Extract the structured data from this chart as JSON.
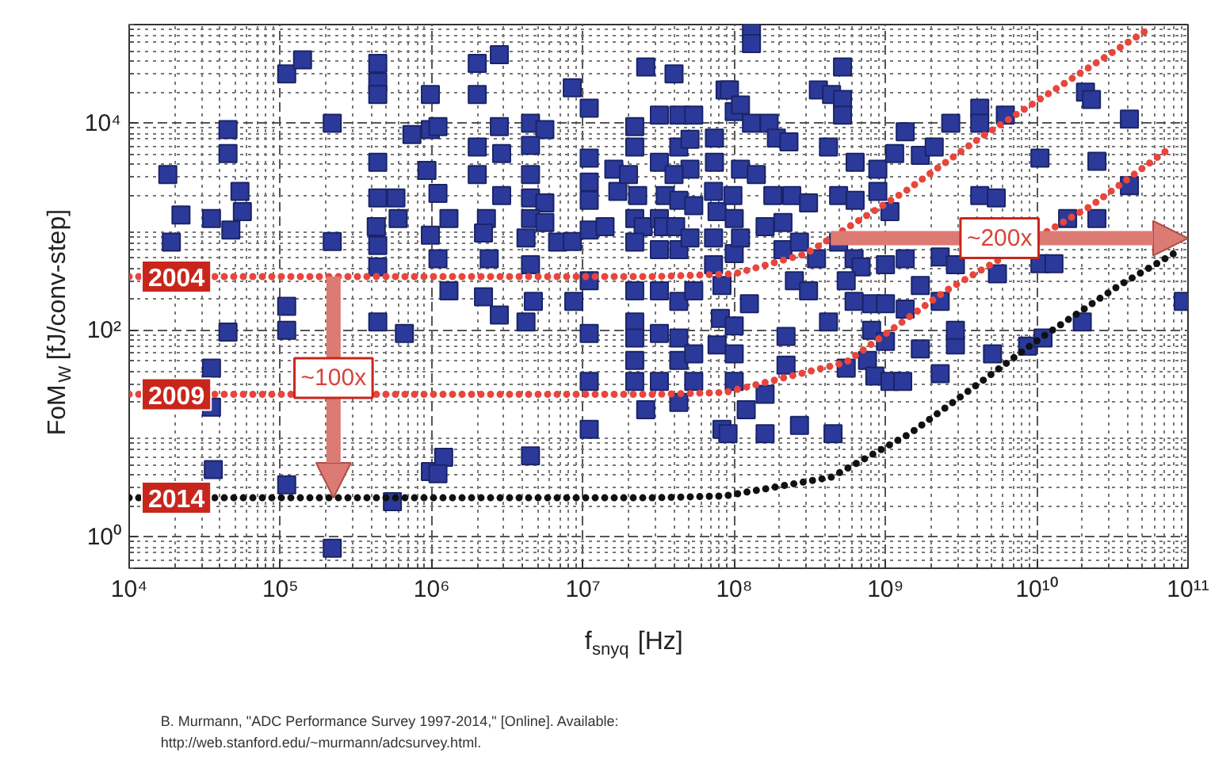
{
  "chart_data": {
    "type": "scatter",
    "xlabel": "f$_{snyq}$ [Hz]",
    "ylabel": "FoM$_{W}$ [fJ/conv-step]",
    "log": "xy",
    "xlim": [
      10000,
      100000000000
    ],
    "ylim": [
      0.5,
      90000
    ],
    "xticks": [
      {
        "value": 10000,
        "label": "10⁴"
      },
      {
        "value": 100000,
        "label": "10⁵"
      },
      {
        "value": 1000000,
        "label": "10⁶"
      },
      {
        "value": 10000000,
        "label": "10⁷"
      },
      {
        "value": 100000000,
        "label": "10⁸"
      },
      {
        "value": 1000000000,
        "label": "10⁹"
      },
      {
        "value": 10000000000,
        "label": "10¹⁰"
      },
      {
        "value": 100000000000,
        "label": "10¹¹"
      }
    ],
    "yticks": [
      {
        "value": 1,
        "label": "10⁰"
      },
      {
        "value": 100,
        "label": "10²"
      },
      {
        "value": 10000,
        "label": "10⁴"
      }
    ],
    "grid": true,
    "marker": "square",
    "series": [
      {
        "color": "#2b3a9a",
        "x": [
          18000.0,
          22000.0,
          19000.0,
          45000.0,
          45000.0,
          54000.0,
          56000.0,
          35000.0,
          47000.0,
          45000.0,
          35000.0,
          35000.0,
          36000.0,
          110000.0,
          140000.0,
          220000.0,
          220000.0,
          110000.0,
          110000.0,
          110000.0,
          220000.0,
          440000.0,
          440000.0,
          440000.0,
          440000.0,
          440000.0,
          580000.0,
          600000.0,
          430000.0,
          440000.0,
          440000.0,
          440000.0,
          660000.0,
          740000.0,
          550000.0,
          980000.0,
          980000.0,
          930000.0,
          980000.0,
          980000.0,
          1100000.0,
          1300000.0,
          1100000.0,
          1100000.0,
          1300000.0,
          2000000.0,
          2800000.0,
          2000000.0,
          2800000.0,
          2000000.0,
          2900000.0,
          2000000.0,
          2900000.0,
          2300000.0,
          2200000.0,
          2400000.0,
          2200000.0,
          2800000.0,
          1200000.0,
          1100000.0,
          4500000.0,
          5600000.0,
          4500000.0,
          4500000.0,
          4500000.0,
          5600000.0,
          4500000.0,
          5600000.0,
          4200000.0,
          4500000.0,
          4700000.0,
          4200000.0,
          4500000.0,
          8500000.0,
          11000000.0,
          11000000.0,
          11000000.0,
          11000000.0,
          6800000.0,
          8500000.0,
          11000000.0,
          14000000.0,
          8700000.0,
          11000000.0,
          11000000.0,
          11000000.0,
          11000000.0,
          16000000.0,
          17000000.0,
          22000000.0,
          22000000.0,
          20000000.0,
          23000000.0,
          22000000.0,
          25000000.0,
          22000000.0,
          26000000.0,
          32000000.0,
          32000000.0,
          32000000.0,
          40000000.0,
          43000000.0,
          54000000.0,
          43000000.0,
          51000000.0,
          51000000.0,
          40000000.0,
          35000000.0,
          43000000.0,
          54000000.0,
          34000000.0,
          41000000.0,
          32000000.0,
          43000000.0,
          51000000.0,
          22000000.0,
          22000000.0,
          22000000.0,
          32000000.0,
          43000000.0,
          54000000.0,
          32000000.0,
          43000000.0,
          43000000.0,
          54000000.0,
          22000000.0,
          22000000.0,
          26000000.0,
          32000000.0,
          43000000.0,
          54000000.0,
          74000000.0,
          74000000.0,
          73000000.0,
          77000000.0,
          73000000.0,
          73000000.0,
          87000000.0,
          83000000.0,
          81000000.0,
          77000000.0,
          83000000.0,
          100000000.0,
          98000000.0,
          100000000.0,
          130000000.0,
          130000000.0,
          520000000.0,
          360000000.0,
          440000000.0,
          520000000.0,
          520000000.0,
          93000000.0,
          110000000.0,
          130000000.0,
          170000000.0,
          190000000.0,
          230000000.0,
          420000000.0,
          630000000.0,
          890000000.0,
          1350000000.0,
          1150000000.0,
          1700000000.0,
          2100000000.0,
          2700000000.0,
          4200000000.0,
          4200000000.0,
          6200000000.0,
          10500000000.0,
          21000000000.0,
          23000000000.0,
          41000000000.0,
          25000000000.0,
          41000000000.0,
          4200000000.0,
          5400000000.0,
          110000000.0,
          140000000.0,
          180000000.0,
          240000000.0,
          310000000.0,
          490000000.0,
          630000000.0,
          890000000.0,
          1070000000.0,
          100000000.0,
          110000000.0,
          160000000.0,
          210000000.0,
          210000000.0,
          270000000.0,
          350000000.0,
          490000000.0,
          620000000.0,
          690000000.0,
          1000000000.0,
          1350000000.0,
          2300000000.0,
          2900000000.0,
          10500000000.0,
          13000000000.0,
          25000000000.0,
          16000000000.0,
          5500000000.0,
          250000000.0,
          310000000.0,
          550000000.0,
          620000000.0,
          810000000.0,
          1000000000.0,
          1350000000.0,
          1700000000.0,
          2300000000.0,
          126000000.0,
          100000000.0,
          220000000.0,
          420000000.0,
          810000000.0,
          1000000000.0,
          760000000.0,
          850000000.0,
          1070000000.0,
          1300000000.0,
          1700000000.0,
          2900000000.0,
          2900000000.0,
          2300000000.0,
          5100000000.0,
          8700000000.0,
          11000000000.0,
          20000000000.0,
          550000000.0,
          220000000.0,
          100000000.0,
          100000000.0,
          160000000.0,
          120000000.0,
          91000000.0,
          160000000.0,
          270000000.0,
          450000000.0,
          93000000000.0
        ],
        "values": [
          3200,
          1300,
          710,
          8700,
          5100,
          2200,
          1400,
          1200,
          930,
          96,
          43,
          18,
          4.5,
          30000,
          41000,
          10000,
          720,
          170,
          100,
          3.2,
          0.78,
          38000,
          25000,
          19000,
          4200,
          1900,
          1900,
          1200,
          1000,
          660,
          410,
          120,
          93,
          7800,
          2.2,
          19000,
          8700,
          3500,
          830,
          4.3,
          9300,
          1200,
          2100,
          490,
          240,
          38000,
          46000,
          19000,
          9300,
          5900,
          5100,
          3200,
          2000,
          1200,
          870,
          490,
          210,
          140,
          5.9,
          4.1,
          10000,
          8700,
          6100,
          3200,
          1900,
          1700,
          1200,
          1100,
          780,
          430,
          190,
          120,
          6.1,
          22000,
          14000,
          4600,
          2700,
          1800,
          710,
          720,
          930,
          1000,
          190,
          300,
          93,
          32,
          11,
          3600,
          2200,
          9300,
          5900,
          3200,
          2000,
          1200,
          1000,
          710,
          35000,
          12000,
          4200,
          1200,
          30000,
          12000,
          12000,
          5900,
          7000,
          3600,
          3200,
          2000,
          1800,
          1600,
          1000,
          1000,
          600,
          600,
          780,
          240,
          120,
          84,
          240,
          190,
          240,
          93,
          84,
          51,
          59,
          51,
          32,
          17,
          32,
          20,
          32,
          7200,
          4200,
          2200,
          1400,
          780,
          430,
          21000,
          270,
          130,
          72,
          11,
          13000,
          2000,
          550,
          78000,
          59000,
          35000,
          21000,
          19000,
          17000,
          12000,
          21000,
          15000,
          10000,
          10000,
          7200,
          6600,
          5900,
          4200,
          3600,
          8300,
          5100,
          4900,
          5900,
          10000,
          14000,
          10000,
          12000,
          4600,
          20000,
          17000,
          11000,
          4300,
          2500,
          2000,
          1900,
          3600,
          3200,
          2000,
          2000,
          1700,
          2000,
          1800,
          2200,
          1400,
          1200,
          780,
          1000,
          1100,
          600,
          710,
          490,
          710,
          490,
          410,
          430,
          490,
          510,
          430,
          440,
          440,
          1200,
          1200,
          350,
          300,
          240,
          300,
          190,
          180,
          180,
          160,
          270,
          190,
          180,
          110,
          87,
          120,
          100,
          78,
          51,
          36,
          32,
          32,
          66,
          72,
          100,
          38,
          59,
          70,
          84,
          120,
          43,
          46,
          59,
          32,
          24,
          17,
          10,
          10,
          12,
          10,
          190
        ]
      },
      {
        "type": "line",
        "name": "2004",
        "color": "#e8453c",
        "line_style": "dotted",
        "marker": "none",
        "x": [
          10000.0,
          30000000.0,
          100000000.0,
          300000000.0,
          1350000000.0,
          4200000000.0,
          56000000000.0
        ],
        "values": [
          330,
          330,
          350,
          550,
          2200,
          7200,
          83000
        ]
      },
      {
        "type": "line",
        "name": "2009",
        "color": "#e8453c",
        "line_style": "dotted",
        "marker": "none",
        "x": [
          10000.0,
          30000000.0,
          87000000.0,
          550000000.0,
          2500000000.0,
          23000000000.0,
          79000000000.0
        ],
        "values": [
          24,
          24,
          25,
          49,
          240,
          1600,
          6000
        ]
      },
      {
        "type": "line",
        "name": "2014",
        "color": "#111111",
        "line_style": "dotted",
        "marker": "none",
        "x": [
          10000.0,
          30000000.0,
          87000000.0,
          440000000.0,
          1450000000.0,
          4700000000.0,
          10500000000.0,
          35000000000.0,
          89000000000.0
        ],
        "values": [
          2.4,
          2.4,
          2.5,
          3.8,
          10,
          35,
          83,
          270,
          600
        ]
      }
    ],
    "annotations": [
      "~100x",
      "~200x",
      "B. Murmann, \"ADC Performance Survey 1997-2014,\" [Online]. Available:",
      "http://web.stanford.edu/~murmann/adcsurvey.html."
    ]
  }
}
